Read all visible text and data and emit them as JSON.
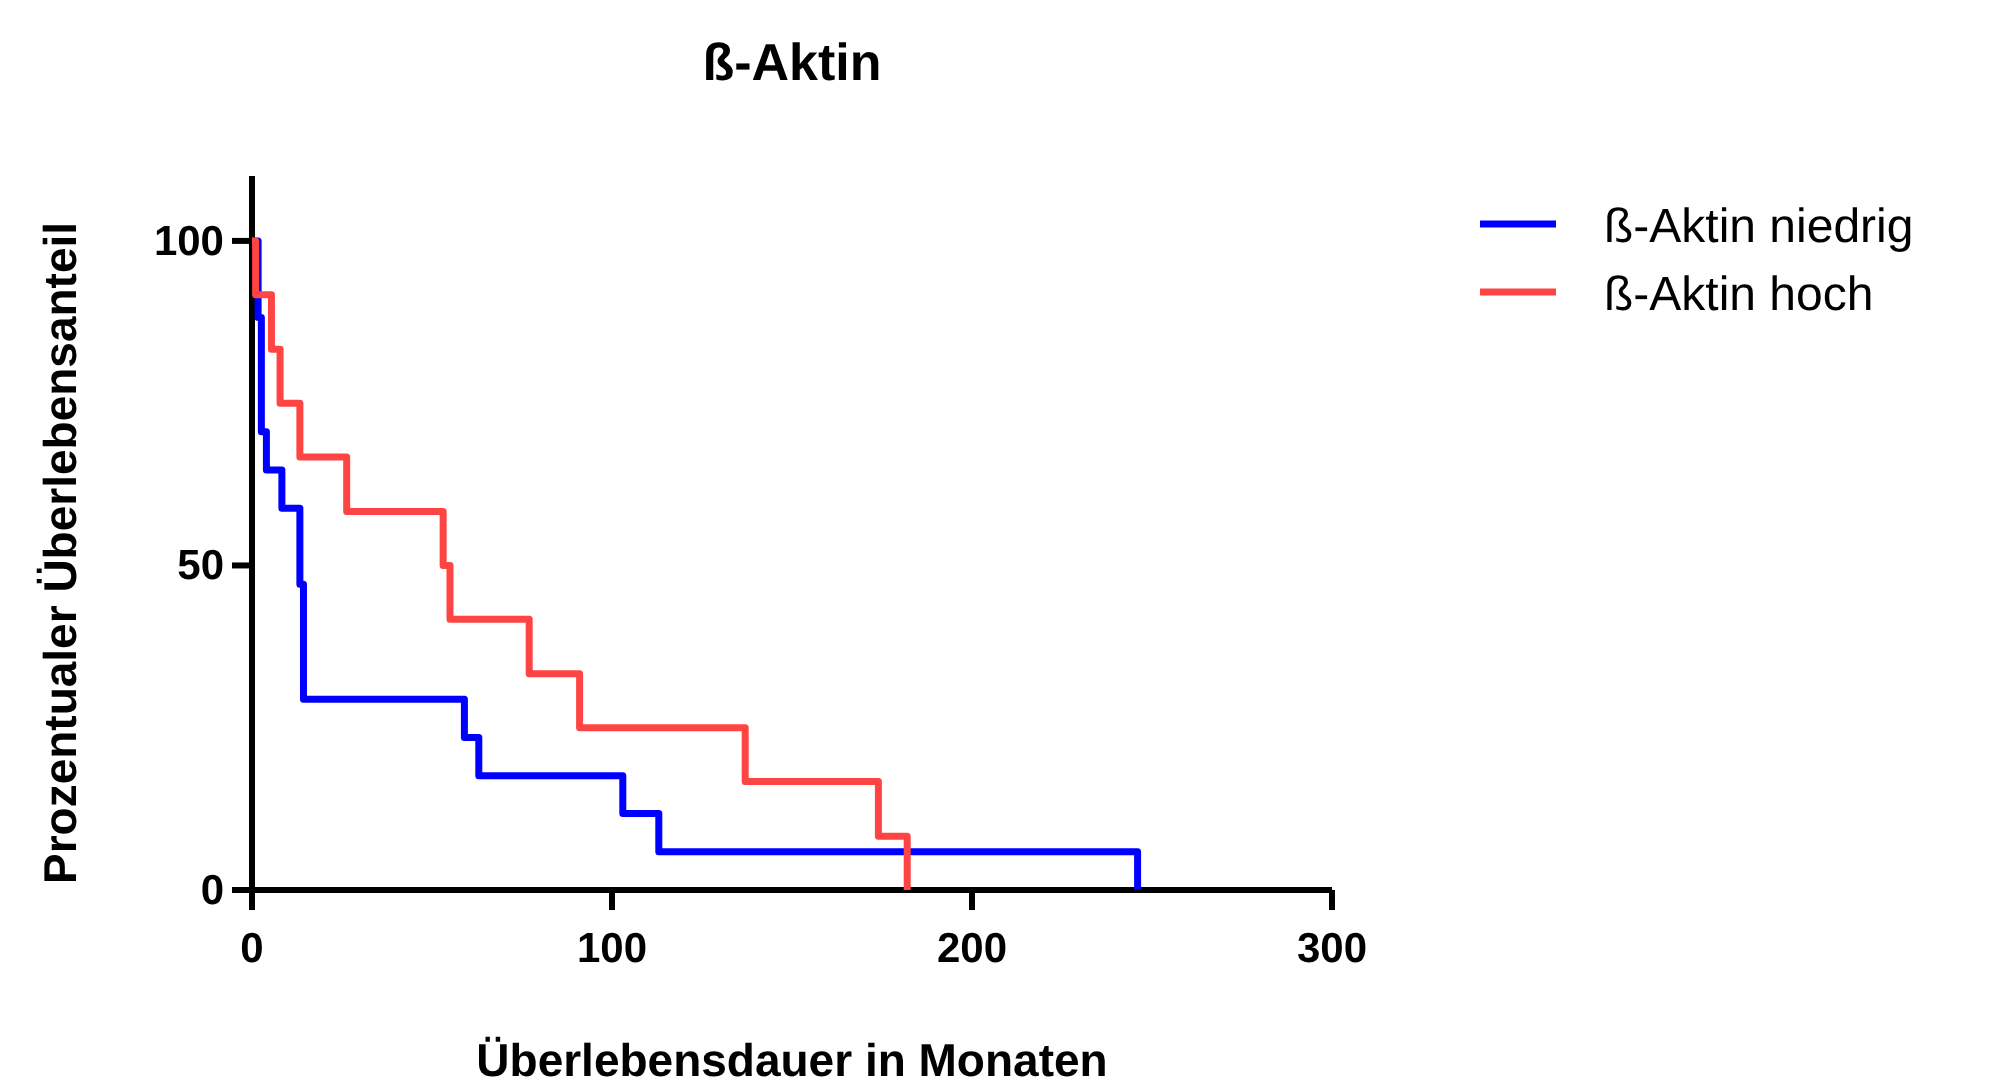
{
  "chart_data": {
    "type": "step",
    "title": "ß-Aktin",
    "xlabel": "Überlebensdauer in Monaten",
    "ylabel": "Prozentualer Überlebensanteil",
    "xlim": [
      0,
      300
    ],
    "xticks": [
      0,
      100,
      200,
      300
    ],
    "ylim": [
      0,
      110
    ],
    "yticks": [
      0,
      50,
      100
    ],
    "legend": "top right",
    "grid": false,
    "series": [
      {
        "name": "ß-Aktin niedrig",
        "color": "#0000ff",
        "x": [
          0,
          1.7,
          2.6,
          4,
          8.3,
          13.3,
          14.3,
          59,
          63,
          103,
          113,
          246
        ],
        "values": [
          100,
          88.2,
          70.6,
          64.7,
          58.8,
          47.1,
          29.4,
          23.5,
          17.6,
          11.8,
          5.9,
          0
        ]
      },
      {
        "name": "ß-Aktin hoch",
        "color": "#ff4444",
        "x": [
          0,
          1,
          5.4,
          7.8,
          13.3,
          26.3,
          53.1,
          55,
          77,
          91,
          137,
          174,
          182
        ],
        "values": [
          100,
          91.7,
          83.3,
          75,
          66.7,
          58.3,
          50,
          41.7,
          33.3,
          25,
          16.7,
          8.3,
          0
        ]
      }
    ]
  }
}
